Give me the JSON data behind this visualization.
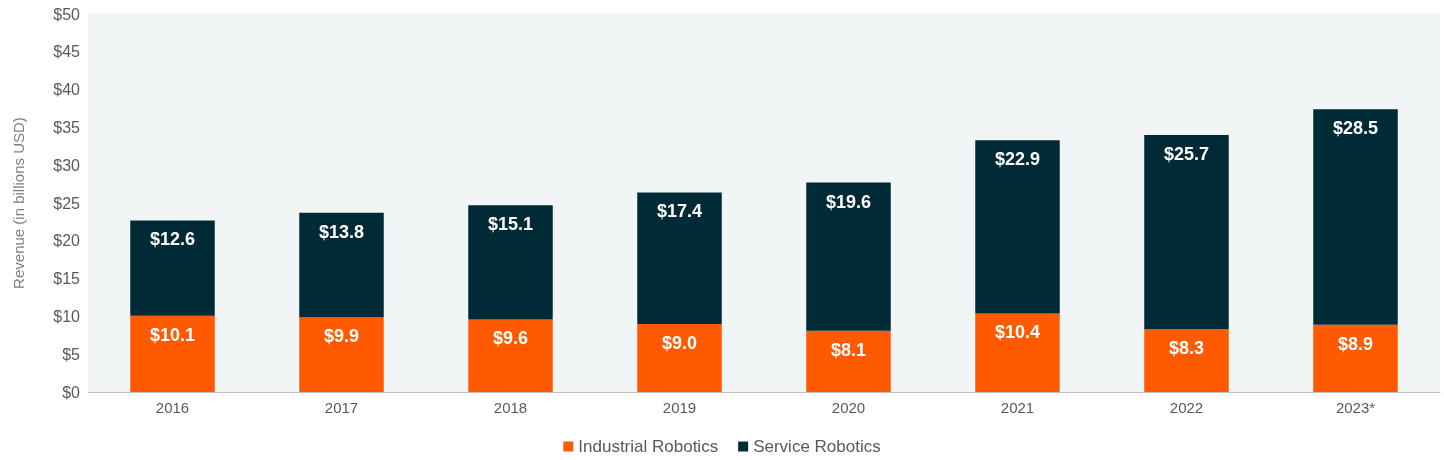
{
  "chart_data": {
    "type": "bar",
    "ylabel": "Revenue (in billions USD)",
    "categories": [
      "2016",
      "2017",
      "2018",
      "2019",
      "2020",
      "2021",
      "2022",
      "2023*"
    ],
    "stacked": true,
    "series": [
      {
        "name": "Industrial Robotics",
        "color": "#ff5a00",
        "values": [
          10.1,
          9.9,
          9.6,
          9.0,
          8.1,
          10.4,
          8.3,
          8.9
        ],
        "value_labels": [
          "$10.1",
          "$9.9",
          "$9.6",
          "$9.0",
          "$8.1",
          "$10.4",
          "$8.3",
          "$8.9"
        ]
      },
      {
        "name": "Service Robotics",
        "color": "#002b36",
        "values": [
          12.6,
          13.8,
          15.1,
          17.4,
          19.6,
          22.9,
          25.7,
          28.5
        ],
        "value_labels": [
          "$12.6",
          "$13.8",
          "$15.1",
          "$17.4",
          "$19.6",
          "$22.9",
          "$25.7",
          "$28.5"
        ]
      }
    ],
    "ylim": [
      0,
      50
    ],
    "yticks": [
      {
        "value": 0,
        "label": "$0"
      },
      {
        "value": 5,
        "label": "$5"
      },
      {
        "value": 10,
        "label": "$10"
      },
      {
        "value": 15,
        "label": "$15"
      },
      {
        "value": 20,
        "label": "$20"
      },
      {
        "value": 25,
        "label": "$25"
      },
      {
        "value": 30,
        "label": "$30"
      },
      {
        "value": 35,
        "label": "$35"
      },
      {
        "value": 40,
        "label": "$40"
      },
      {
        "value": 45,
        "label": "$45"
      },
      {
        "value": 50,
        "label": "$50"
      }
    ],
    "grid": false,
    "legend": "bottom"
  }
}
